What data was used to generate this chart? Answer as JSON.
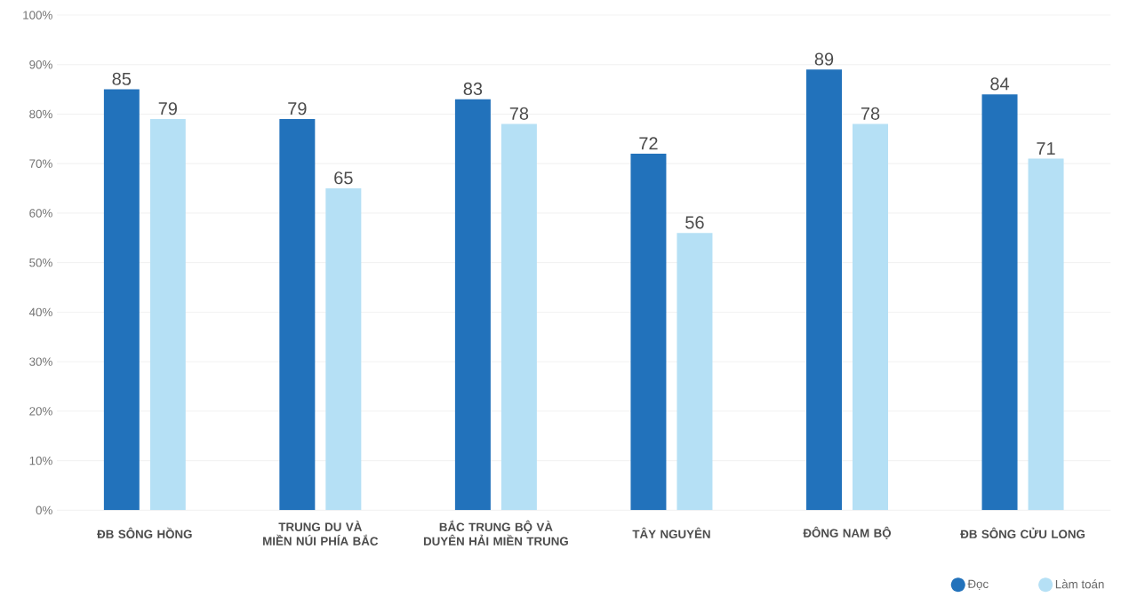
{
  "chart_data": {
    "type": "bar",
    "categories": [
      "ĐB SÔNG HỒNG",
      "TRUNG DU VÀ MIỀN NÚI PHÍA BẮC",
      "BẮC TRUNG BỘ VÀ DUYÊN HẢI MIỀN TRUNG",
      "TÂY NGUYÊN",
      "ĐÔNG NAM BỘ",
      "ĐB SÔNG CỬU LONG"
    ],
    "series": [
      {
        "name": "Đọc",
        "color": "#2272bb",
        "values": [
          85,
          79,
          83,
          72,
          89,
          84
        ]
      },
      {
        "name": "Làm toán",
        "color": "#b5e0f5",
        "values": [
          79,
          65,
          78,
          56,
          78,
          71
        ]
      }
    ],
    "ylim": [
      0,
      100
    ],
    "yticks": [
      {
        "value": 0,
        "label": "0%"
      },
      {
        "value": 10,
        "label": "10%"
      },
      {
        "value": 20,
        "label": "20%"
      },
      {
        "value": 30,
        "label": "30%"
      },
      {
        "value": 40,
        "label": "40%"
      },
      {
        "value": 50,
        "label": "50%"
      },
      {
        "value": 60,
        "label": "60%"
      },
      {
        "value": 70,
        "label": "70%"
      },
      {
        "value": 80,
        "label": "80%"
      },
      {
        "value": 90,
        "label": "90%"
      },
      {
        "value": 100,
        "label": "100%"
      }
    ],
    "grid": "y",
    "legend": "bottom right",
    "data_labels": true
  }
}
